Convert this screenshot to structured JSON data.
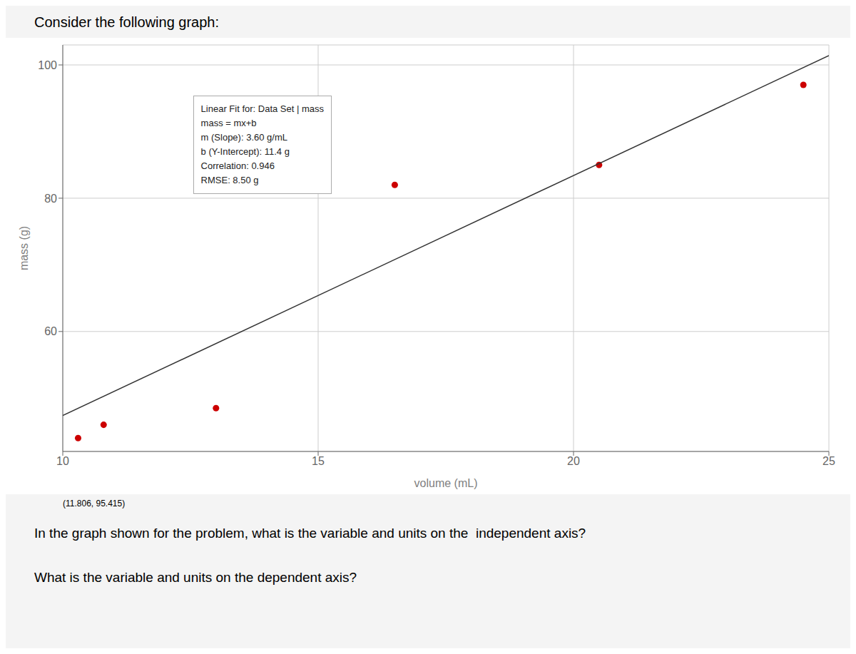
{
  "chart_data": {
    "type": "scatter",
    "title": "Consider the following graph:",
    "x_label": "volume (mL)",
    "y_label": "mass (g)",
    "xlim": [
      10,
      25
    ],
    "ylim": [
      42,
      103
    ],
    "xticks": [
      10,
      15,
      20,
      25
    ],
    "yticks": [
      60,
      80,
      100
    ],
    "grid": true,
    "series": [
      {
        "type": "scatter",
        "color": "#cc0000",
        "x": [
          10.3,
          10.8,
          13.0,
          16.5,
          20.5,
          24.5
        ],
        "values": [
          44.0,
          46.0,
          48.5,
          82.0,
          85.0,
          97.0
        ]
      },
      {
        "type": "line",
        "color": "#333333",
        "x": [
          10,
          25
        ],
        "values": [
          47.4,
          101.4
        ]
      }
    ],
    "annotations": [
      "(11.806, 95.415)",
      "Linear Fit for: Data Set | mass\nmass = mx+b\nm (Slope): 3.60 g/mL\nb (Y-Intercept): 11.4 g\nCorrelation: 0.946\nRMSE: 8.50 g",
      "In the graph shown for the problem, what is the variable and units on the  independent axis?",
      "What is the variable and units on the dependent axis?"
    ]
  }
}
